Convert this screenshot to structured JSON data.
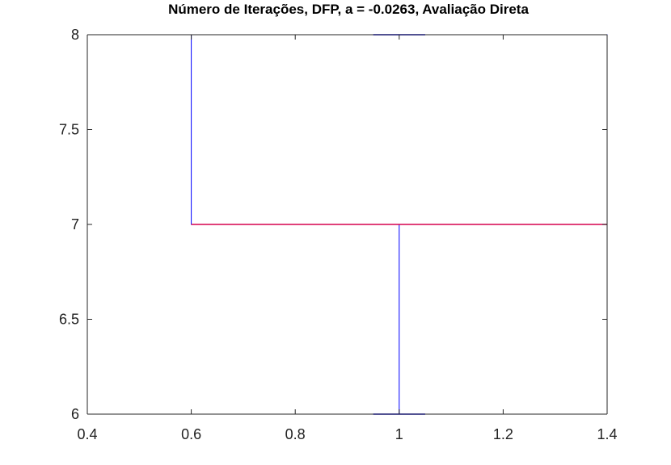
{
  "chart_data": {
    "type": "boxplot",
    "title": "Número de Iterações, DFP, a = -0.0263, Avaliação Direta",
    "xlabel": "",
    "ylabel": "",
    "xlim": [
      0.4,
      1.4
    ],
    "ylim": [
      6,
      8
    ],
    "xticks": [
      0.4,
      0.6,
      0.8,
      1.0,
      1.2,
      1.4
    ],
    "xtick_labels": [
      "0.4",
      "0.6",
      "0.8",
      "1",
      "1.2",
      "1.4"
    ],
    "yticks": [
      6,
      6.5,
      7,
      7.5,
      8
    ],
    "ytick_labels": [
      "6",
      "6.5",
      "7",
      "7.5",
      "8"
    ],
    "grid": false,
    "boxes": [
      {
        "position": 1,
        "box_left": 0.6,
        "box_right": 1.4,
        "whisker_cap_left": 0.95,
        "whisker_cap_right": 1.05,
        "min": 6,
        "q1": 7,
        "median": 7,
        "q3": 8,
        "max": 8
      }
    ],
    "colors": {
      "box": "#0000ff",
      "median": "#d6004f",
      "axes": "#262626"
    }
  }
}
